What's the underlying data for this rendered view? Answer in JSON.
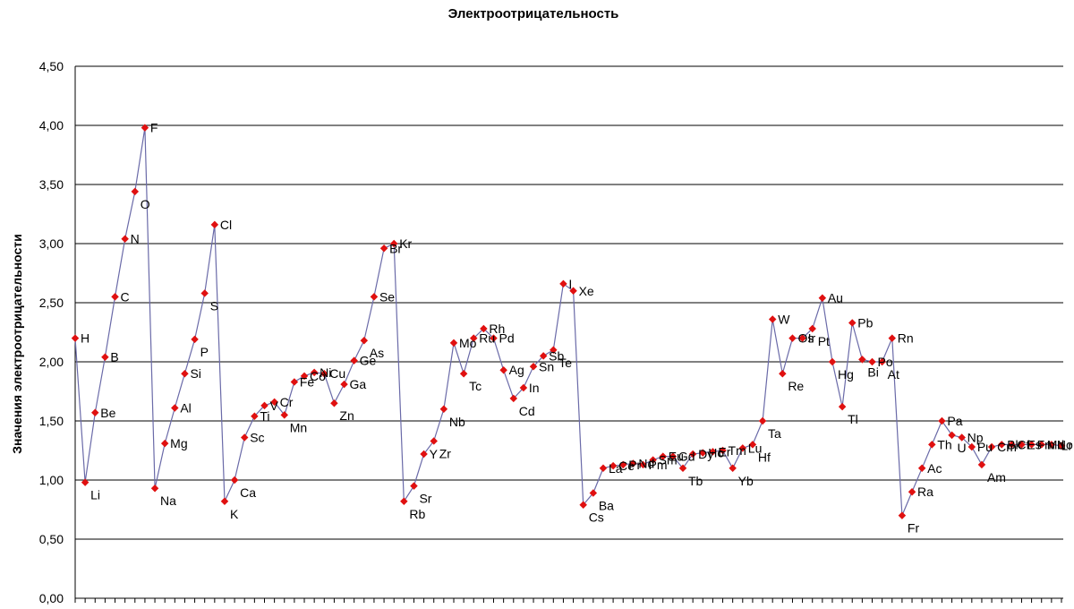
{
  "chart_data": {
    "type": "line",
    "title": "Электроотрицательность",
    "xlabel": "",
    "ylabel": "Значения электроотрицательности",
    "ylim": [
      0,
      4.5
    ],
    "yticks": [
      "0,00",
      "0,50",
      "1,00",
      "1,50",
      "2,00",
      "2,50",
      "3,00",
      "3,50",
      "4,00",
      "4,50"
    ],
    "grid": true,
    "line_color": "#6a6aa8",
    "marker_color": "#e01010",
    "series": [
      {
        "points": [
          {
            "label": "H",
            "value": 2.2
          },
          {
            "label": "Li",
            "value": 0.98
          },
          {
            "label": "Be",
            "value": 1.57
          },
          {
            "label": "B",
            "value": 2.04
          },
          {
            "label": "C",
            "value": 2.55
          },
          {
            "label": "N",
            "value": 3.04
          },
          {
            "label": "O",
            "value": 3.44
          },
          {
            "label": "F",
            "value": 3.98
          },
          {
            "label": "Na",
            "value": 0.93
          },
          {
            "label": "Mg",
            "value": 1.31
          },
          {
            "label": "Al",
            "value": 1.61
          },
          {
            "label": "Si",
            "value": 1.9
          },
          {
            "label": "P",
            "value": 2.19
          },
          {
            "label": "S",
            "value": 2.58
          },
          {
            "label": "Cl",
            "value": 3.16
          },
          {
            "label": "K",
            "value": 0.82
          },
          {
            "label": "Ca",
            "value": 1.0
          },
          {
            "label": "Sc",
            "value": 1.36
          },
          {
            "label": "Ti",
            "value": 1.54
          },
          {
            "label": "V",
            "value": 1.63
          },
          {
            "label": "Cr",
            "value": 1.66
          },
          {
            "label": "Mn",
            "value": 1.55
          },
          {
            "label": "Fe",
            "value": 1.83
          },
          {
            "label": "Co",
            "value": 1.88
          },
          {
            "label": "Ni",
            "value": 1.91
          },
          {
            "label": "Cu",
            "value": 1.9
          },
          {
            "label": "Zn",
            "value": 1.65
          },
          {
            "label": "Ga",
            "value": 1.81
          },
          {
            "label": "Ge",
            "value": 2.01
          },
          {
            "label": "As",
            "value": 2.18
          },
          {
            "label": "Se",
            "value": 2.55
          },
          {
            "label": "Br",
            "value": 2.96
          },
          {
            "label": "Kr",
            "value": 3.0
          },
          {
            "label": "Rb",
            "value": 0.82
          },
          {
            "label": "Sr",
            "value": 0.95
          },
          {
            "label": "Y",
            "value": 1.22
          },
          {
            "label": "Zr",
            "value": 1.33
          },
          {
            "label": "Nb",
            "value": 1.6
          },
          {
            "label": "Mo",
            "value": 2.16
          },
          {
            "label": "Tc",
            "value": 1.9
          },
          {
            "label": "Ru",
            "value": 2.2
          },
          {
            "label": "Rh",
            "value": 2.28
          },
          {
            "label": "Pd",
            "value": 2.2
          },
          {
            "label": "Ag",
            "value": 1.93
          },
          {
            "label": "Cd",
            "value": 1.69
          },
          {
            "label": "In",
            "value": 1.78
          },
          {
            "label": "Sn",
            "value": 1.96
          },
          {
            "label": "Sb",
            "value": 2.05
          },
          {
            "label": "Te",
            "value": 2.1
          },
          {
            "label": "I",
            "value": 2.66
          },
          {
            "label": "Xe",
            "value": 2.6
          },
          {
            "label": "Cs",
            "value": 0.79
          },
          {
            "label": "Ba",
            "value": 0.89
          },
          {
            "label": "La",
            "value": 1.1
          },
          {
            "label": "Ce",
            "value": 1.12
          },
          {
            "label": "Pr",
            "value": 1.13
          },
          {
            "label": "Nd",
            "value": 1.14
          },
          {
            "label": "Pm",
            "value": 1.13
          },
          {
            "label": "Sm",
            "value": 1.17
          },
          {
            "label": "Eu",
            "value": 1.2
          },
          {
            "label": "Gd",
            "value": 1.2
          },
          {
            "label": "Tb",
            "value": 1.1
          },
          {
            "label": "Dy",
            "value": 1.22
          },
          {
            "label": "Ho",
            "value": 1.23
          },
          {
            "label": "Er",
            "value": 1.24
          },
          {
            "label": "Tm",
            "value": 1.25
          },
          {
            "label": "Yb",
            "value": 1.1
          },
          {
            "label": "Lu",
            "value": 1.27
          },
          {
            "label": "Hf",
            "value": 1.3
          },
          {
            "label": "Ta",
            "value": 1.5
          },
          {
            "label": "W",
            "value": 2.36
          },
          {
            "label": "Re",
            "value": 1.9
          },
          {
            "label": "Os",
            "value": 2.2
          },
          {
            "label": "Ir",
            "value": 2.2
          },
          {
            "label": "Pt",
            "value": 2.28
          },
          {
            "label": "Au",
            "value": 2.54
          },
          {
            "label": "Hg",
            "value": 2.0
          },
          {
            "label": "Tl",
            "value": 1.62
          },
          {
            "label": "Pb",
            "value": 2.33
          },
          {
            "label": "Bi",
            "value": 2.02
          },
          {
            "label": "Po",
            "value": 2.0
          },
          {
            "label": "At",
            "value": 2.0
          },
          {
            "label": "Rn",
            "value": 2.2
          },
          {
            "label": "Fr",
            "value": 0.7
          },
          {
            "label": "Ra",
            "value": 0.9
          },
          {
            "label": "Ac",
            "value": 1.1
          },
          {
            "label": "Th",
            "value": 1.3
          },
          {
            "label": "Pa",
            "value": 1.5
          },
          {
            "label": "U",
            "value": 1.38
          },
          {
            "label": "Np",
            "value": 1.36
          },
          {
            "label": "Pu",
            "value": 1.28
          },
          {
            "label": "Am",
            "value": 1.13
          },
          {
            "label": "Cm",
            "value": 1.28
          },
          {
            "label": "Bk",
            "value": 1.3
          },
          {
            "label": "Cf",
            "value": 1.3
          },
          {
            "label": "Es",
            "value": 1.3
          },
          {
            "label": "Fm",
            "value": 1.3
          },
          {
            "label": "Md",
            "value": 1.3
          },
          {
            "label": "No",
            "value": 1.3
          },
          {
            "label": "Lr",
            "value": 1.29
          }
        ]
      }
    ]
  }
}
